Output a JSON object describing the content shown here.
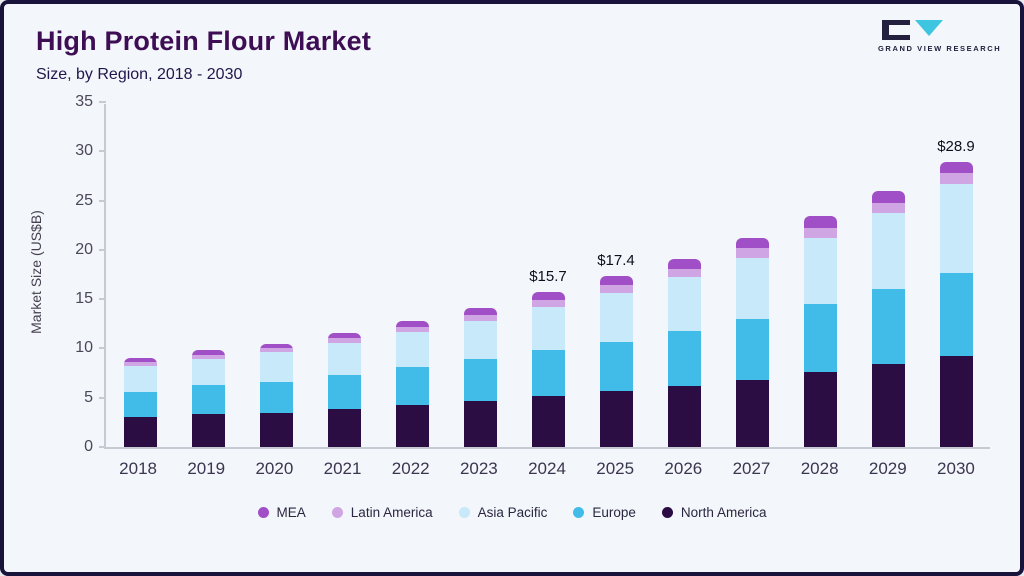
{
  "header": {
    "title": "High Protein Flour Market",
    "subtitle": "Size, by Region, 2018 - 2030",
    "logo_text": "GRAND VIEW RESEARCH"
  },
  "brand": {
    "logo_dark": "#23203f",
    "logo_cyan": "#3ec6e0"
  },
  "chart_data": {
    "type": "bar",
    "stacked": true,
    "title": "High Protein Flour Market",
    "subtitle": "Size, by Region, 2018 - 2030",
    "xlabel": "",
    "ylabel": "Market Size (US$B)",
    "ylim": [
      0,
      35
    ],
    "yticks": [
      0,
      5,
      10,
      15,
      20,
      25,
      30,
      35
    ],
    "grid": false,
    "legend_position": "bottom",
    "categories": [
      "2018",
      "2019",
      "2020",
      "2021",
      "2022",
      "2023",
      "2024",
      "2025",
      "2026",
      "2027",
      "2028",
      "2029",
      "2030"
    ],
    "series": [
      {
        "name": "North America",
        "color": "#2b0d44",
        "values": [
          3.0,
          3.3,
          3.5,
          3.9,
          4.3,
          4.7,
          5.2,
          5.7,
          6.2,
          6.8,
          7.6,
          8.4,
          9.2
        ]
      },
      {
        "name": "Europe",
        "color": "#41bce9",
        "values": [
          2.6,
          3.0,
          3.1,
          3.4,
          3.8,
          4.2,
          4.6,
          5.0,
          5.6,
          6.2,
          6.9,
          7.6,
          8.5
        ]
      },
      {
        "name": "Asia Pacific",
        "color": "#c7e9f9",
        "values": [
          2.6,
          2.6,
          3.0,
          3.3,
          3.6,
          3.9,
          4.4,
          4.9,
          5.4,
          6.2,
          6.7,
          7.7,
          9.0
        ]
      },
      {
        "name": "Latin America",
        "color": "#cfa6e3",
        "values": [
          0.4,
          0.4,
          0.4,
          0.5,
          0.5,
          0.6,
          0.7,
          0.8,
          0.9,
          1.0,
          1.0,
          1.1,
          1.1
        ]
      },
      {
        "name": "MEA",
        "color": "#a14fc6",
        "values": [
          0.4,
          0.5,
          0.5,
          0.5,
          0.6,
          0.7,
          0.8,
          1.0,
          1.0,
          1.0,
          1.2,
          1.2,
          1.1
        ]
      }
    ],
    "totals": [
      9.0,
      9.8,
      10.5,
      11.6,
      12.8,
      14.1,
      15.7,
      17.4,
      19.1,
      21.2,
      23.4,
      26.0,
      28.9
    ],
    "annotations": [
      {
        "category": "2024",
        "label": "$15.7"
      },
      {
        "category": "2025",
        "label": "$17.4"
      },
      {
        "category": "2030",
        "label": "$28.9"
      }
    ],
    "legend": [
      "MEA",
      "Latin America",
      "Asia Pacific",
      "Europe",
      "North America"
    ]
  }
}
